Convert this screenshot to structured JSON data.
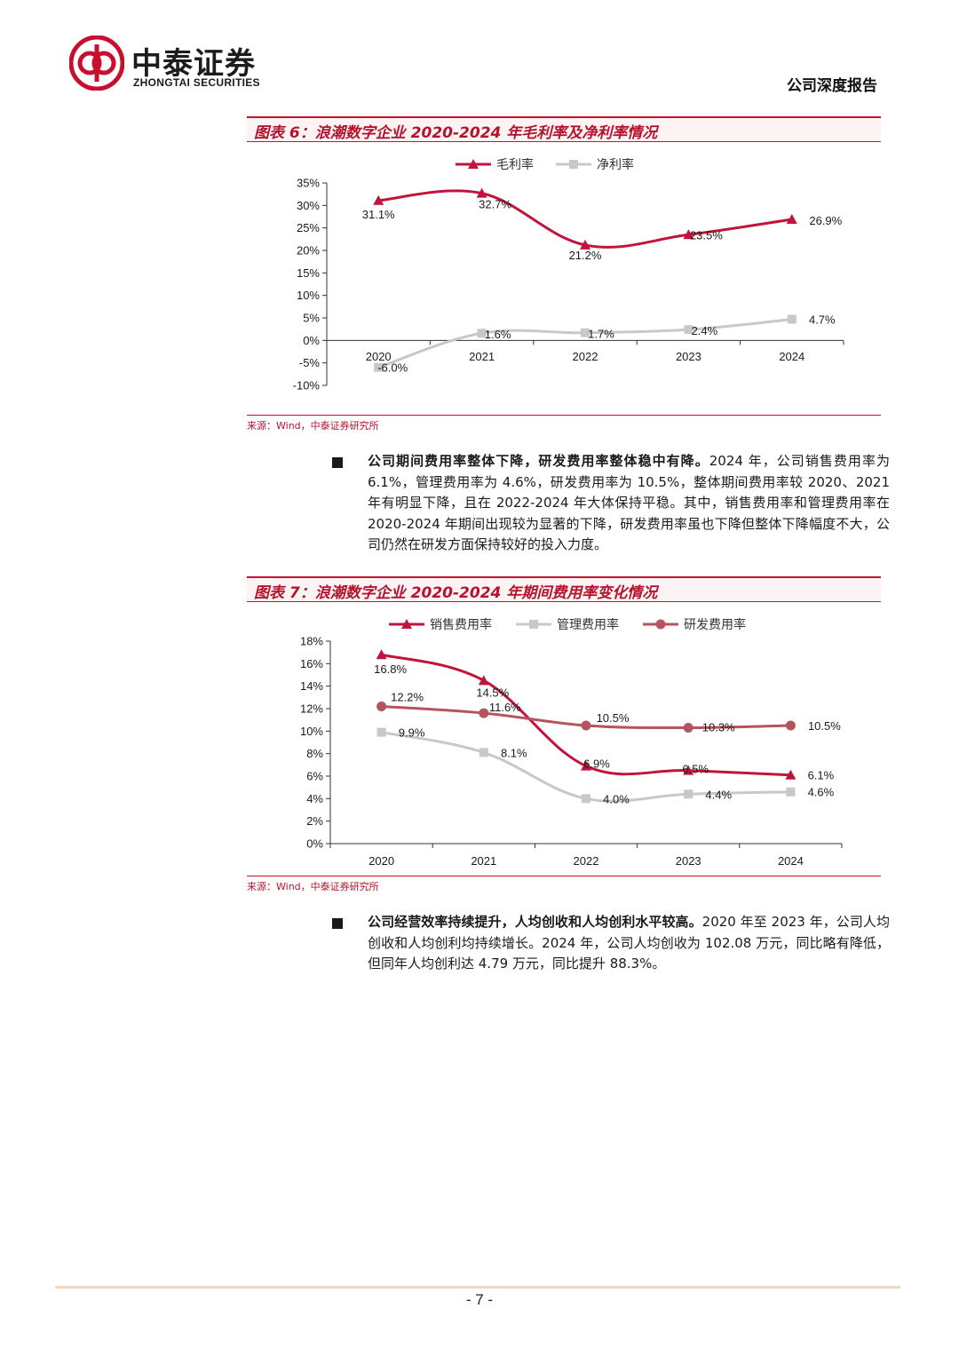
{
  "header": {
    "brand_cn": "中泰证券",
    "brand_en": "ZHONGTAI SECURITIES",
    "report_type": "公司深度报告",
    "brand_color": "#c8102e"
  },
  "figure6": {
    "title": "图表 6：浪潮数字企业 2020-2024 年毛利率及净利率情况",
    "source": "来源：Wind，中泰证券研究所"
  },
  "figure7": {
    "title": "图表 7：浪潮数字企业 2020-2024 年期间费用率变化情况",
    "source": "来源：Wind，中泰证券研究所"
  },
  "paragraph1": {
    "bold": "公司期间费用率整体下降，研发费用率整体稳中有降。",
    "text": "2024 年，公司销售费用率为 6.1%，管理费用率为 4.6%，研发费用率为 10.5%，整体期间费用率较 2020、2021 年有明显下降，且在 2022-2024 年大体保持平稳。其中，销售费用率和管理费用率在 2020-2024 年期间出现较为显著的下降，研发费用率虽也下降但整体下降幅度不大，公司仍然在研发方面保持较好的投入力度。"
  },
  "paragraph2": {
    "bold": "公司经营效率持续提升，人均创收和人均创利水平较高。",
    "text": "2020 年至 2023 年，公司人均创收和人均创利均持续增长。2024 年，公司人均创收为 102.08 万元，同比略有降低，但同年人均创利达 4.79 万元，同比提升 88.3%。"
  },
  "footer": {
    "page": "- 7 -"
  },
  "chart_data": [
    {
      "type": "line",
      "categories": [
        "2020",
        "2021",
        "2022",
        "2023",
        "2024"
      ],
      "series": [
        {
          "name": "毛利率",
          "values": [
            31.1,
            32.7,
            21.2,
            23.5,
            26.9
          ],
          "labels": [
            "31.1%",
            "32.7%",
            "21.2%",
            "23.5%",
            "26.9%"
          ],
          "color": "#c0143c",
          "marker": "triangle"
        },
        {
          "name": "净利率",
          "values": [
            -6.0,
            1.6,
            1.7,
            2.4,
            4.7
          ],
          "labels": [
            "-6.0%",
            "1.6%",
            "1.7%",
            "2.4%",
            "4.7%"
          ],
          "color": "#c8c8c8",
          "marker": "square"
        }
      ],
      "yticks": [
        "35%",
        "30%",
        "25%",
        "20%",
        "15%",
        "10%",
        "5%",
        "0%",
        "-5%",
        "-10%"
      ],
      "ylim": [
        -10,
        35
      ],
      "legend": "top-center",
      "grid": false
    },
    {
      "type": "line",
      "categories": [
        "2020",
        "2021",
        "2022",
        "2023",
        "2024"
      ],
      "series": [
        {
          "name": "销售费用率",
          "values": [
            16.8,
            14.5,
            6.9,
            6.5,
            6.1
          ],
          "labels": [
            "16.8%",
            "14.5%",
            "6.9%",
            "6.5%",
            "6.1%"
          ],
          "color": "#c0143c",
          "marker": "triangle"
        },
        {
          "name": "管理费用率",
          "values": [
            9.9,
            8.1,
            4.0,
            4.4,
            4.6
          ],
          "labels": [
            "9.9%",
            "8.1%",
            "4.0%",
            "4.4%",
            "4.6%"
          ],
          "color": "#c8c8c8",
          "marker": "square"
        },
        {
          "name": "研发费用率",
          "values": [
            12.2,
            11.6,
            10.5,
            10.3,
            10.5
          ],
          "labels": [
            "12.2%",
            "11.6%",
            "10.5%",
            "10.3%",
            "10.5%"
          ],
          "color": "#b5535f",
          "marker": "circle"
        }
      ],
      "yticks": [
        "18%",
        "16%",
        "14%",
        "12%",
        "10%",
        "8%",
        "6%",
        "4%",
        "2%",
        "0%"
      ],
      "ylim": [
        0,
        18
      ],
      "legend": "top-center",
      "grid": false
    }
  ]
}
